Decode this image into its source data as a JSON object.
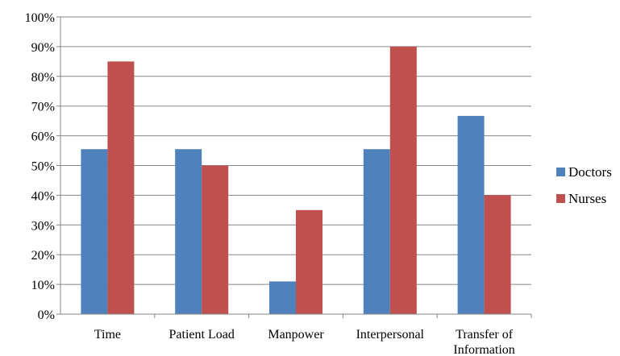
{
  "chart_data": {
    "type": "bar",
    "categories": [
      "Time",
      "Patient Load",
      "Manpower",
      "Interpersonal",
      "Transfer of Information"
    ],
    "category_label_lines": [
      [
        "Time"
      ],
      [
        "Patient Load"
      ],
      [
        "Manpower"
      ],
      [
        "Interpersonal"
      ],
      [
        "Transfer of",
        "Information"
      ]
    ],
    "series": [
      {
        "name": "Doctors",
        "color": "#4F81BD",
        "values": [
          55.5,
          55.5,
          11,
          55.5,
          66.7
        ]
      },
      {
        "name": "Nurses",
        "color": "#C0504D",
        "values": [
          85,
          50,
          35,
          90,
          40
        ]
      }
    ],
    "ylim": [
      0,
      100
    ],
    "yticks": [
      "0%",
      "10%",
      "20%",
      "30%",
      "40%",
      "50%",
      "60%",
      "70%",
      "80%",
      "90%",
      "100%"
    ],
    "grid": true,
    "legend_position": "right"
  }
}
